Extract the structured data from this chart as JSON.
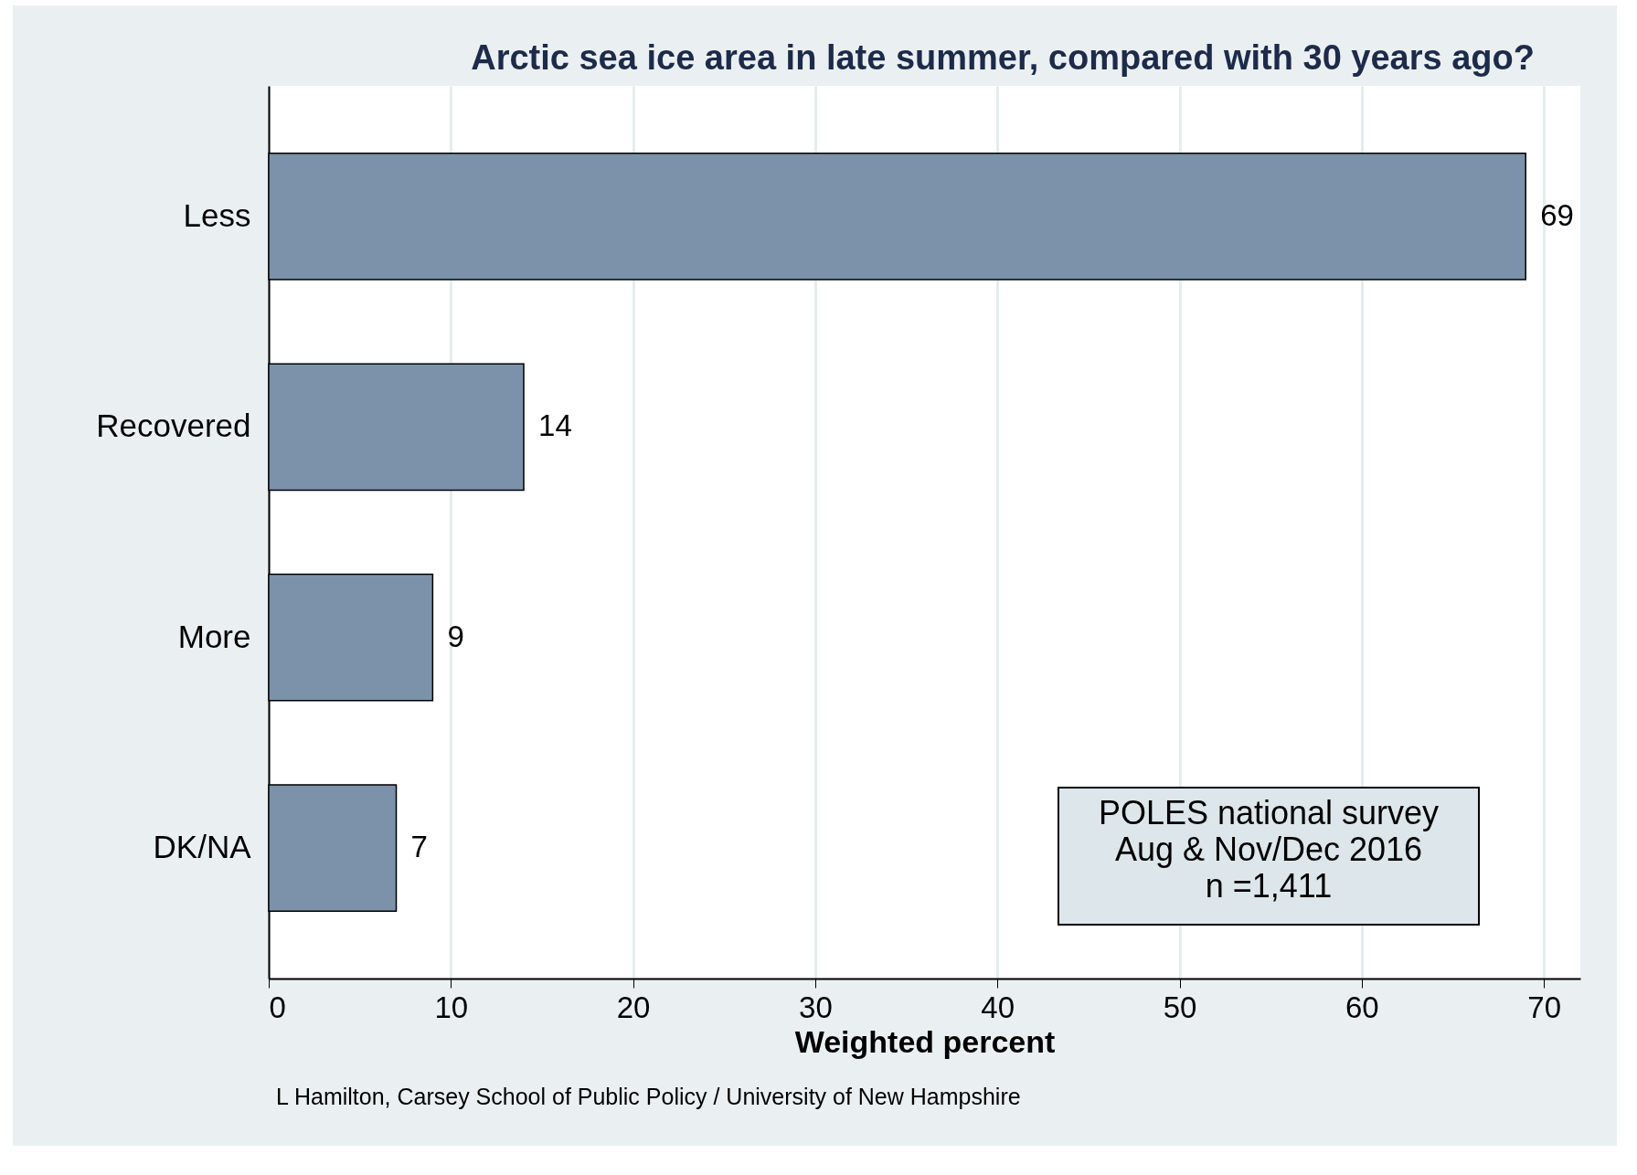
{
  "chart_data": {
    "type": "bar",
    "orientation": "horizontal",
    "title": "Arctic sea ice area in late summer, compared with 30 years ago?",
    "xlabel": "Weighted percent",
    "categories": [
      "Less",
      "Recovered",
      "More",
      "DK/NA"
    ],
    "values": [
      69,
      14,
      9,
      7
    ],
    "color": "#7b92aa",
    "data_labels": true,
    "xlim": [
      0,
      72
    ],
    "xticks": [
      0,
      10,
      20,
      30,
      40,
      50,
      60,
      70
    ],
    "grid": "x",
    "annotations": [
      "POLES national survey\nAug & Nov/Dec 2016\nn =1,411",
      "L Hamilton, Carsey School of Public Policy / University of New Hampshire"
    ]
  }
}
